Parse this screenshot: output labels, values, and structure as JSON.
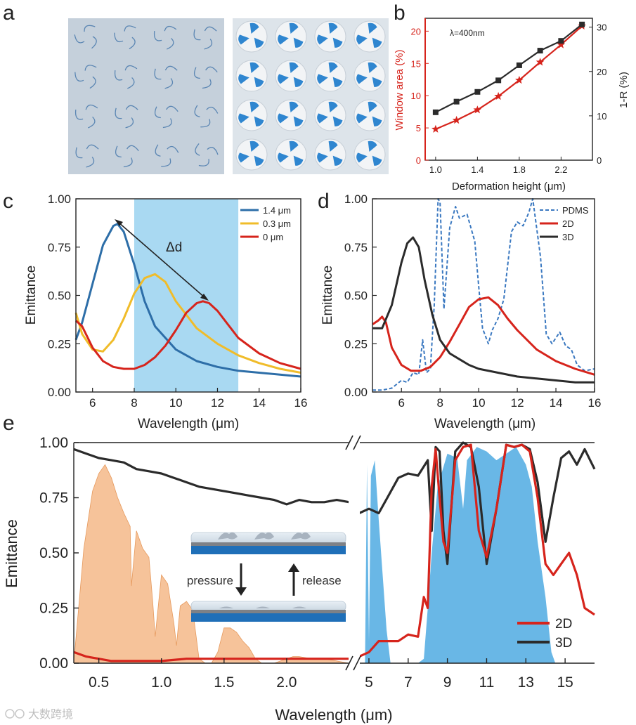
{
  "panel_letters": {
    "a": "a",
    "b": "b",
    "c": "c",
    "d": "d",
    "e": "e"
  },
  "colors": {
    "red": "#d6241c",
    "black": "#2b2b2b",
    "blue": "#2d6ea8",
    "yellow": "#f0bc2a",
    "window": "#a9d9f2",
    "solar": "#f6c39a",
    "atm": "#69b7e6",
    "pdms": "#3a78c0"
  },
  "watermark": {
    "text": "大数跨境"
  },
  "panel_a": {
    "left_image": "flat-kirigami-pattern",
    "right_image": "deformed-3d-kirigami-pattern"
  },
  "chart_data": [
    {
      "id": "b",
      "type": "line",
      "annotation": "λ=400nm",
      "xlabel": "Deformation height (μm)",
      "ylabel_left": "Window area (%)",
      "ylabel_right": "1-R (%)",
      "xlim": [
        0.9,
        2.5
      ],
      "ylim_left": [
        0,
        22
      ],
      "ylim_right": [
        0,
        32
      ],
      "xticks": [
        "1.0",
        "1.4",
        "1.8",
        "2.2"
      ],
      "yticks_left": [
        "0",
        "5",
        "10",
        "15",
        "20"
      ],
      "yticks_right": [
        "0",
        "10",
        "20",
        "30"
      ],
      "series": [
        {
          "name": "Window area",
          "axis": "left",
          "color": "#d6241c",
          "marker": "star",
          "x": [
            1.0,
            1.2,
            1.4,
            1.6,
            1.8,
            2.0,
            2.2,
            2.4
          ],
          "y": [
            4.8,
            6.2,
            7.8,
            9.9,
            12.4,
            15.2,
            17.9,
            20.8
          ]
        },
        {
          "name": "1-R",
          "axis": "right",
          "color": "#2b2b2b",
          "marker": "square",
          "x": [
            1.0,
            1.2,
            1.4,
            1.6,
            1.8,
            2.0,
            2.2,
            2.4
          ],
          "y": [
            10.8,
            13.2,
            15.4,
            18.0,
            21.4,
            24.7,
            26.9,
            30.6
          ]
        }
      ]
    },
    {
      "id": "c",
      "type": "line",
      "xlabel": "Wavelength (μm)",
      "ylabel": "Emittance",
      "xlim": [
        5.2,
        16
      ],
      "ylim": [
        0,
        1
      ],
      "xticks": [
        "6",
        "8",
        "10",
        "12",
        "14",
        "16"
      ],
      "yticks": [
        "0.00",
        "0.25",
        "0.50",
        "0.75",
        "1.00"
      ],
      "window": [
        8,
        13
      ],
      "annotation": "Δd",
      "series": [
        {
          "name": "1.4 μm",
          "color": "#2d6ea8",
          "x": [
            5.2,
            5.5,
            6.0,
            6.5,
            7.0,
            7.2,
            7.5,
            8.0,
            8.5,
            9.0,
            10.0,
            11.0,
            12.0,
            13.0,
            14.0,
            15.0,
            16.0
          ],
          "y": [
            0.27,
            0.36,
            0.56,
            0.76,
            0.86,
            0.87,
            0.83,
            0.66,
            0.47,
            0.34,
            0.22,
            0.16,
            0.13,
            0.11,
            0.1,
            0.09,
            0.08
          ]
        },
        {
          "name": "0.3 μm",
          "color": "#f0bc2a",
          "x": [
            5.2,
            5.5,
            6.0,
            6.5,
            7.0,
            7.5,
            8.0,
            8.5,
            9.0,
            9.5,
            10.0,
            11.0,
            12.0,
            13.0,
            14.0,
            15.0,
            16.0
          ],
          "y": [
            0.41,
            0.3,
            0.22,
            0.21,
            0.27,
            0.38,
            0.51,
            0.59,
            0.61,
            0.57,
            0.47,
            0.33,
            0.25,
            0.19,
            0.15,
            0.12,
            0.1
          ]
        },
        {
          "name": "0 μm",
          "color": "#d6241c",
          "x": [
            5.2,
            5.5,
            6.0,
            6.5,
            7.0,
            7.5,
            8.0,
            8.5,
            9.0,
            9.5,
            10.0,
            10.5,
            11.0,
            11.3,
            11.6,
            12.0,
            12.5,
            13.0,
            14.0,
            15.0,
            16.0
          ],
          "y": [
            0.37,
            0.34,
            0.23,
            0.16,
            0.13,
            0.12,
            0.12,
            0.14,
            0.18,
            0.24,
            0.32,
            0.41,
            0.46,
            0.47,
            0.46,
            0.42,
            0.35,
            0.28,
            0.2,
            0.15,
            0.12
          ]
        }
      ]
    },
    {
      "id": "d",
      "type": "line",
      "xlabel": "Wavelength (μm)",
      "ylabel": "Emittance",
      "xlim": [
        4.5,
        16
      ],
      "ylim": [
        0,
        1
      ],
      "xticks": [
        "6",
        "8",
        "10",
        "12",
        "14",
        "16"
      ],
      "yticks": [
        "0.00",
        "0.25",
        "0.50",
        "0.75",
        "1.00"
      ],
      "series": [
        {
          "name": "PDMS",
          "color": "#3a78c0",
          "dashed": true,
          "x": [
            4.5,
            5.0,
            5.5,
            6.0,
            6.3,
            6.6,
            6.9,
            7.1,
            7.3,
            7.5,
            7.7,
            7.9,
            8.0,
            8.2,
            8.5,
            8.8,
            9.0,
            9.4,
            9.8,
            10.0,
            10.2,
            10.5,
            10.7,
            11.0,
            11.3,
            11.7,
            12.0,
            12.3,
            12.6,
            12.8,
            13.2,
            13.5,
            13.8,
            14.2,
            14.5,
            14.8,
            15.1,
            15.5,
            16.0
          ],
          "y": [
            0.01,
            0.01,
            0.02,
            0.06,
            0.05,
            0.1,
            0.09,
            0.27,
            0.1,
            0.12,
            0.45,
            1.0,
            0.98,
            0.43,
            0.85,
            0.96,
            0.9,
            0.92,
            0.78,
            0.55,
            0.33,
            0.25,
            0.32,
            0.38,
            0.48,
            0.83,
            0.88,
            0.86,
            0.93,
            1.0,
            0.7,
            0.3,
            0.25,
            0.31,
            0.24,
            0.22,
            0.14,
            0.11,
            0.12
          ]
        },
        {
          "name": "2D",
          "color": "#d6241c",
          "x": [
            4.5,
            4.8,
            5.0,
            5.2,
            5.5,
            6.0,
            6.5,
            7.0,
            7.5,
            8.0,
            8.5,
            9.0,
            9.5,
            10.0,
            10.5,
            11.0,
            11.5,
            12.0,
            13.0,
            14.0,
            15.0,
            16.0
          ],
          "y": [
            0.35,
            0.37,
            0.39,
            0.36,
            0.23,
            0.14,
            0.11,
            0.11,
            0.13,
            0.18,
            0.26,
            0.35,
            0.44,
            0.48,
            0.49,
            0.45,
            0.38,
            0.32,
            0.22,
            0.16,
            0.12,
            0.09
          ]
        },
        {
          "name": "3D",
          "color": "#2b2b2b",
          "x": [
            4.5,
            5.0,
            5.5,
            6.0,
            6.3,
            6.6,
            6.9,
            7.2,
            7.6,
            8.0,
            8.5,
            9.0,
            9.5,
            10.0,
            11.0,
            12.0,
            13.0,
            14.0,
            15.0,
            16.0
          ],
          "y": [
            0.33,
            0.33,
            0.45,
            0.67,
            0.77,
            0.8,
            0.75,
            0.58,
            0.4,
            0.27,
            0.2,
            0.17,
            0.14,
            0.12,
            0.1,
            0.08,
            0.07,
            0.06,
            0.05,
            0.05
          ]
        }
      ]
    },
    {
      "id": "e",
      "type": "line",
      "xlabel": "Wavelength (μm)",
      "ylabel": "Emittance",
      "ylim": [
        0,
        1
      ],
      "yticks": [
        "0.00",
        "0.25",
        "0.50",
        "0.75",
        "1.00"
      ],
      "left_xlim": [
        0.3,
        2.5
      ],
      "right_xlim": [
        4.5,
        16.5
      ],
      "xticks_left": [
        "0.5",
        "1.0",
        "1.5",
        "2.0"
      ],
      "xticks_right": [
        "5",
        "7",
        "9",
        "11",
        "13",
        "15"
      ],
      "inset": {
        "pressure": "pressure",
        "release": "release"
      },
      "legend": [
        {
          "name": "2D",
          "color": "#d6241c"
        },
        {
          "name": "3D",
          "color": "#2b2b2b"
        }
      ],
      "solar_spectrum": {
        "x": [
          0.3,
          0.38,
          0.45,
          0.5,
          0.55,
          0.6,
          0.65,
          0.7,
          0.75,
          0.76,
          0.8,
          0.85,
          0.9,
          0.93,
          0.95,
          1.0,
          1.05,
          1.1,
          1.12,
          1.15,
          1.2,
          1.25,
          1.3,
          1.35,
          1.4,
          1.45,
          1.5,
          1.55,
          1.6,
          1.65,
          1.7,
          1.75,
          1.8,
          1.85,
          1.9,
          1.95,
          2.0,
          2.05,
          2.1,
          2.2,
          2.3,
          2.4,
          2.5
        ],
        "y": [
          0.0,
          0.52,
          0.78,
          0.86,
          0.9,
          0.84,
          0.75,
          0.68,
          0.62,
          0.35,
          0.6,
          0.52,
          0.48,
          0.28,
          0.12,
          0.4,
          0.36,
          0.18,
          0.08,
          0.26,
          0.28,
          0.24,
          0.02,
          0.0,
          0.0,
          0.05,
          0.16,
          0.16,
          0.14,
          0.1,
          0.07,
          0.02,
          0.0,
          0.0,
          0.0,
          0.01,
          0.02,
          0.03,
          0.03,
          0.02,
          0.02,
          0.01,
          0.0
        ]
      },
      "atmospheric_window": {
        "x": [
          4.5,
          4.8,
          4.9,
          5.0,
          5.1,
          5.3,
          5.5,
          5.7,
          5.9,
          6.1,
          6.5,
          7.0,
          7.5,
          7.8,
          8.0,
          8.2,
          8.5,
          9.0,
          9.5,
          9.8,
          10.0,
          10.5,
          11.0,
          11.5,
          12.0,
          12.5,
          13.0,
          13.3,
          13.6,
          14.0,
          14.3,
          14.5,
          16.5
        ],
        "y": [
          0.0,
          0.0,
          0.9,
          0.1,
          0.85,
          0.92,
          0.65,
          0.4,
          0.15,
          0.0,
          0.0,
          0.0,
          0.0,
          0.02,
          0.25,
          0.5,
          0.8,
          0.95,
          0.93,
          0.7,
          0.92,
          0.98,
          0.96,
          0.92,
          0.95,
          0.98,
          0.9,
          0.8,
          0.55,
          0.3,
          0.05,
          0.0,
          0.0
        ]
      },
      "series": [
        {
          "name": "3D",
          "color": "#2b2b2b",
          "left": {
            "x": [
              0.3,
              0.4,
              0.5,
              0.6,
              0.7,
              0.8,
              0.9,
              1.0,
              1.1,
              1.2,
              1.3,
              1.4,
              1.5,
              1.6,
              1.7,
              1.8,
              1.9,
              2.0,
              2.1,
              2.2,
              2.3,
              2.4,
              2.5
            ],
            "y": [
              0.97,
              0.95,
              0.93,
              0.92,
              0.91,
              0.88,
              0.87,
              0.86,
              0.84,
              0.82,
              0.8,
              0.79,
              0.78,
              0.77,
              0.76,
              0.75,
              0.74,
              0.72,
              0.74,
              0.73,
              0.73,
              0.74,
              0.73
            ]
          },
          "right": {
            "x": [
              4.5,
              5.0,
              5.5,
              6.0,
              6.5,
              7.0,
              7.5,
              8.0,
              8.2,
              8.4,
              8.6,
              8.8,
              9.0,
              9.4,
              9.8,
              10.2,
              10.6,
              11.0,
              11.5,
              12.0,
              12.4,
              12.8,
              13.2,
              13.6,
              14.0,
              14.4,
              14.8,
              15.2,
              15.6,
              16.0,
              16.5
            ],
            "y": [
              0.68,
              0.7,
              0.68,
              0.76,
              0.84,
              0.86,
              0.85,
              0.92,
              0.6,
              0.98,
              0.96,
              0.6,
              0.45,
              0.96,
              1.0,
              0.98,
              0.8,
              0.45,
              0.7,
              0.99,
              0.98,
              0.99,
              0.97,
              0.82,
              0.55,
              0.75,
              0.93,
              0.96,
              0.9,
              0.97,
              0.88
            ]
          }
        },
        {
          "name": "2D",
          "color": "#d6241c",
          "left": {
            "x": [
              0.3,
              0.4,
              0.5,
              0.6,
              0.8,
              1.0,
              1.2,
              1.4,
              1.6,
              1.8,
              2.0,
              2.2,
              2.5
            ],
            "y": [
              0.05,
              0.03,
              0.02,
              0.01,
              0.01,
              0.01,
              0.02,
              0.02,
              0.02,
              0.02,
              0.02,
              0.02,
              0.02
            ]
          },
          "right": {
            "x": [
              4.5,
              5.0,
              5.5,
              6.0,
              6.5,
              7.0,
              7.5,
              7.8,
              8.0,
              8.2,
              8.4,
              8.6,
              8.8,
              9.0,
              9.4,
              9.8,
              10.2,
              10.6,
              11.0,
              11.5,
              12.0,
              12.4,
              12.8,
              13.2,
              13.6,
              14.0,
              14.4,
              14.8,
              15.2,
              15.6,
              16.0,
              16.5
            ],
            "y": [
              0.03,
              0.05,
              0.1,
              0.1,
              0.1,
              0.13,
              0.12,
              0.3,
              0.25,
              0.8,
              0.97,
              0.75,
              0.55,
              0.5,
              0.92,
              0.98,
              0.99,
              0.6,
              0.48,
              0.7,
              0.99,
              0.98,
              0.99,
              0.96,
              0.75,
              0.45,
              0.4,
              0.45,
              0.5,
              0.4,
              0.25,
              0.22
            ]
          }
        }
      ]
    }
  ]
}
